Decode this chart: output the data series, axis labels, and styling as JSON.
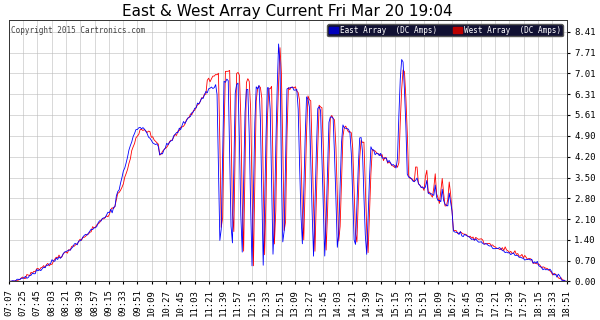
{
  "title": "East & West Array Current Fri Mar 20 19:04",
  "copyright": "Copyright 2015 Cartronics.com",
  "legend_east": "East Array  (DC Amps)",
  "legend_west": "West Array  (DC Amps)",
  "east_color": "#0000ff",
  "west_color": "#ff0000",
  "legend_east_bg": "#0000bb",
  "legend_west_bg": "#bb0000",
  "background_color": "#ffffff",
  "plot_bg_color": "#ffffff",
  "grid_color": "#bbbbbb",
  "yticks": [
    0.0,
    0.7,
    1.4,
    2.1,
    2.8,
    3.5,
    4.2,
    4.9,
    5.61,
    6.31,
    7.01,
    7.71,
    8.41
  ],
  "ylim": [
    0.0,
    8.8
  ],
  "title_fontsize": 11,
  "tick_fontsize": 6.5,
  "time_labels": [
    "07:07",
    "07:25",
    "07:45",
    "08:03",
    "08:21",
    "08:39",
    "08:57",
    "09:15",
    "09:33",
    "09:51",
    "10:09",
    "10:27",
    "10:45",
    "11:03",
    "11:21",
    "11:39",
    "11:57",
    "12:15",
    "12:33",
    "12:51",
    "13:09",
    "13:27",
    "13:45",
    "14:03",
    "14:21",
    "14:39",
    "14:57",
    "15:15",
    "15:33",
    "15:51",
    "16:09",
    "16:27",
    "16:45",
    "17:03",
    "17:21",
    "17:39",
    "17:57",
    "18:15",
    "18:33",
    "18:51"
  ]
}
